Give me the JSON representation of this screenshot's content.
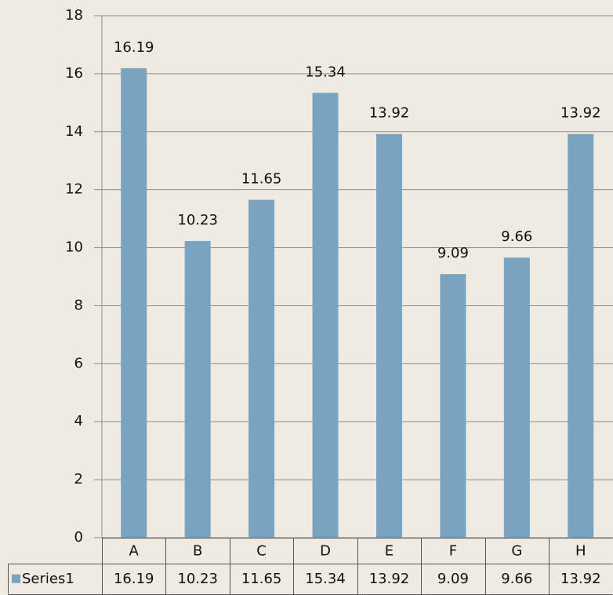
{
  "chart_data": {
    "type": "bar",
    "categories": [
      "A",
      "B",
      "C",
      "D",
      "E",
      "F",
      "G",
      "H"
    ],
    "series": [
      {
        "name": "Series1",
        "color": "#7aa3bf",
        "values": [
          16.19,
          10.23,
          11.65,
          15.34,
          13.92,
          9.09,
          9.66,
          13.92
        ]
      }
    ],
    "ylim": [
      0,
      18
    ],
    "yticks": [
      0,
      2,
      4,
      6,
      8,
      10,
      12,
      14,
      16,
      18
    ],
    "grid": true,
    "data_table": true
  }
}
